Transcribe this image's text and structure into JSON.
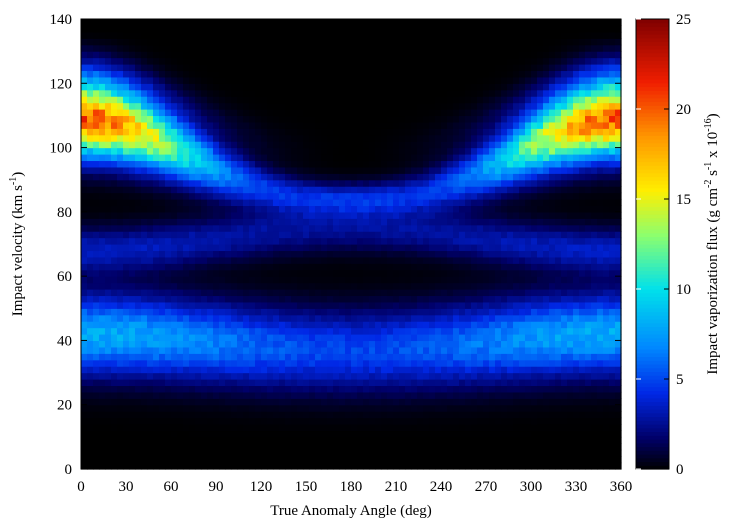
{
  "chart_data": {
    "type": "heatmap",
    "title": "",
    "xlabel": "True Anomaly Angle (deg)",
    "ylabel_main": "Impact velocity (km s",
    "ylabel_sup": "-1",
    "ylabel_close": ")",
    "xlim": [
      0,
      360
    ],
    "ylim": [
      0,
      140
    ],
    "x_ticks": [
      "0",
      "30",
      "60",
      "90",
      "120",
      "150",
      "180",
      "210",
      "240",
      "270",
      "300",
      "330",
      "360"
    ],
    "y_ticks": [
      "0",
      "20",
      "40",
      "60",
      "80",
      "100",
      "120",
      "140"
    ],
    "colorbar": {
      "label_main": "Impact vaporization flux (g cm",
      "label_sup1": "-2",
      "label_mid1": " s",
      "label_sup2": "-1",
      "label_mid2": " x 10",
      "label_sup3": "-16",
      "label_close": ")",
      "range": [
        0,
        25
      ],
      "ticks": [
        "0",
        "5",
        "10",
        "15",
        "20",
        "25"
      ],
      "colormap": "jet-from-black"
    },
    "grid": {
      "x_bin_deg": 4,
      "y_bin_kms": 2
    },
    "bands": [
      {
        "feature": "upper ridge",
        "center_at_0deg_kms": 109,
        "center_at_180deg_kms": 84,
        "peak_flux_at_0deg": 20,
        "peak_flux_at_180deg": 4.2
      },
      {
        "feature": "middle band",
        "center_at_0deg_kms": 68,
        "center_at_180deg_kms": 75,
        "peak_flux": 3.5
      },
      {
        "feature": "lower band",
        "center_at_0deg_kms": 42,
        "center_at_180deg_kms": 37,
        "peak_flux_at_0deg": 8,
        "peak_flux_at_180deg": 5
      }
    ],
    "max_flux": 24
  }
}
